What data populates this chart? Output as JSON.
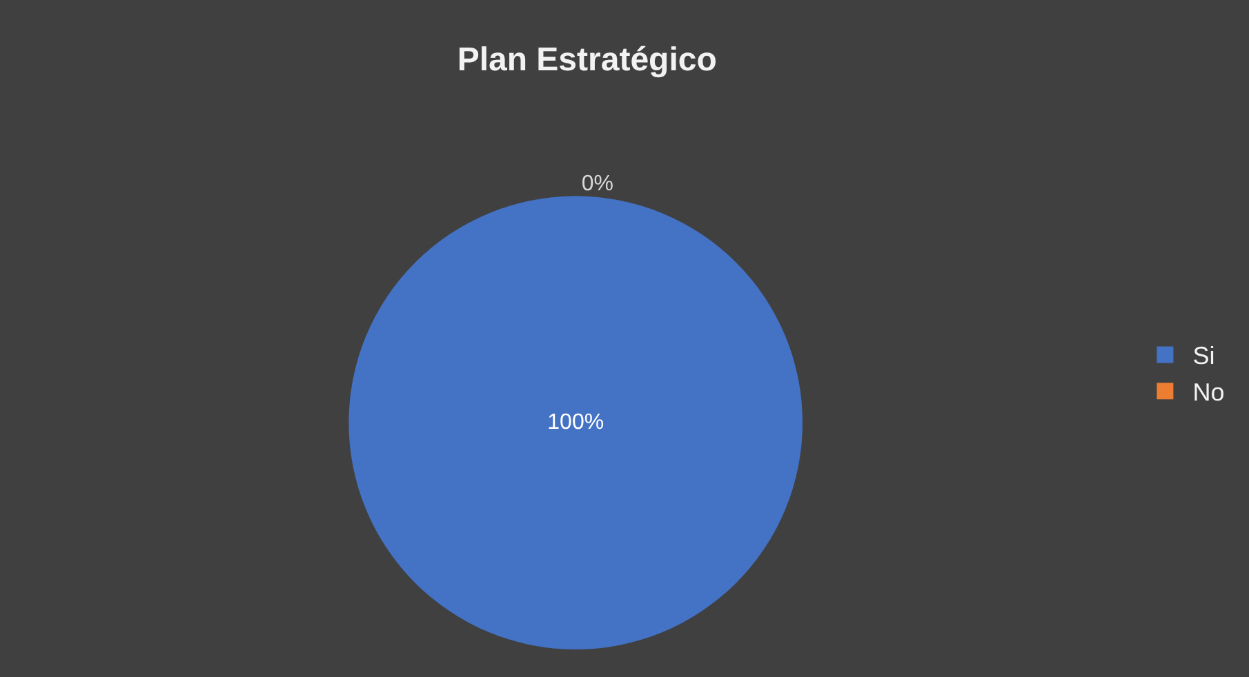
{
  "chart_data": {
    "type": "pie",
    "title": "Plan Estratégico",
    "categories": [
      "Si",
      "No"
    ],
    "values": [
      100,
      0
    ],
    "colors": [
      "#4472c4",
      "#ed7d31"
    ],
    "value_labels": [
      "100%",
      "0%"
    ],
    "legend": "right"
  }
}
